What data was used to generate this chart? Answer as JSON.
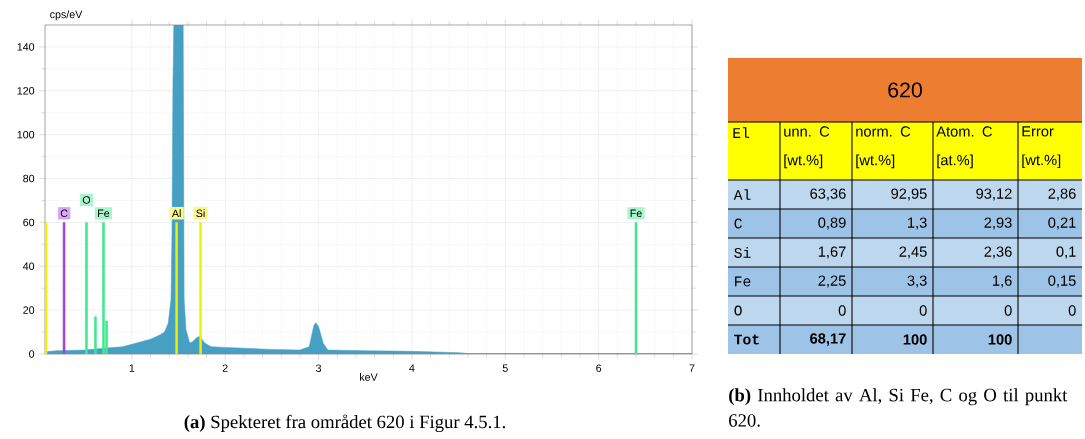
{
  "chart_data": [
    {
      "type": "area",
      "xlabel": "keV",
      "ylabel": "cps/eV",
      "xlim": [
        0.07,
        7
      ],
      "ylim": [
        0,
        150
      ],
      "xticks": [
        1,
        2,
        3,
        4,
        5,
        6,
        7
      ],
      "yticks": [
        0,
        20,
        40,
        60,
        80,
        100,
        120,
        140
      ],
      "grid": true,
      "annotations": [
        "**(a)** Spekteret fra området 620 i Figur 4.5.1."
      ],
      "series": [
        {
          "type": "area",
          "color": "#45a0c4",
          "x": [
            0.07,
            0.2,
            0.5,
            0.7,
            0.9,
            1.0,
            1.1,
            1.2,
            1.3,
            1.35,
            1.39,
            1.42,
            1.43,
            1.44,
            1.45,
            1.53,
            1.55,
            1.56,
            1.58,
            1.62,
            1.65,
            1.7,
            1.73,
            1.78,
            1.85,
            2.0,
            2.5,
            2.8,
            2.9,
            2.95,
            2.97,
            3.0,
            3.05,
            3.1,
            3.5,
            4.0,
            4.5,
            4.6,
            5.0,
            7.0
          ],
          "values": [
            1,
            1.5,
            1.8,
            2.6,
            3.3,
            4.4,
            5.6,
            6.7,
            8.7,
            10,
            14,
            25,
            55,
            122,
            150,
            150,
            150,
            25,
            11,
            5,
            5.6,
            7.6,
            8,
            5,
            3.3,
            3,
            2.1,
            1.8,
            3.3,
            13,
            14.3,
            12.5,
            4.9,
            1.8,
            1.5,
            1.2,
            0.6,
            0.2,
            0.2,
            0.2
          ]
        },
        {
          "type": "bar",
          "x": [
            0.275,
            0.514,
            0.696,
            1.48,
            1.736,
            6.4
          ],
          "values": [
            60,
            60,
            60,
            60,
            60,
            60
          ],
          "colors": [
            "#a040e0",
            "#40e890",
            "#40e890",
            "#f0f000",
            "#f0f000",
            "#40e890"
          ],
          "value_labels": [
            "C",
            "O",
            "Fe",
            "Al",
            "Si",
            "Fe"
          ]
        },
        {
          "type": "bar",
          "x": [
            0.08,
            0.61,
            0.73
          ],
          "values": [
            60,
            17,
            15
          ],
          "colors": [
            "#f0f000",
            "#40e890",
            "#40e890"
          ]
        }
      ]
    },
    {
      "type": "other",
      "title": "620",
      "ylabel": "El",
      "categories": [
        "unn. C [wt.%]",
        "norm. C [wt.%]",
        "Atom. C [at.%]",
        "Error [wt.%]"
      ],
      "y_categories": [
        "Al",
        "C",
        "Si",
        "Fe",
        "O",
        "Tot"
      ],
      "cell_labels": [
        [
          "63,36",
          "92,95",
          "93,12",
          "2,86"
        ],
        [
          "0,89",
          "1,3",
          "2,93",
          "0,21"
        ],
        [
          "1,67",
          "2,45",
          "2,36",
          "0,1"
        ],
        [
          "2,25",
          "3,3",
          "1,6",
          "0,15"
        ],
        [
          "0",
          "0",
          "0",
          "0"
        ],
        [
          "68,17",
          "100",
          "100",
          null
        ]
      ],
      "annotations": [
        "**(b)** Innholdet av Al, Si Fe, C og O til punkt 620."
      ]
    }
  ]
}
